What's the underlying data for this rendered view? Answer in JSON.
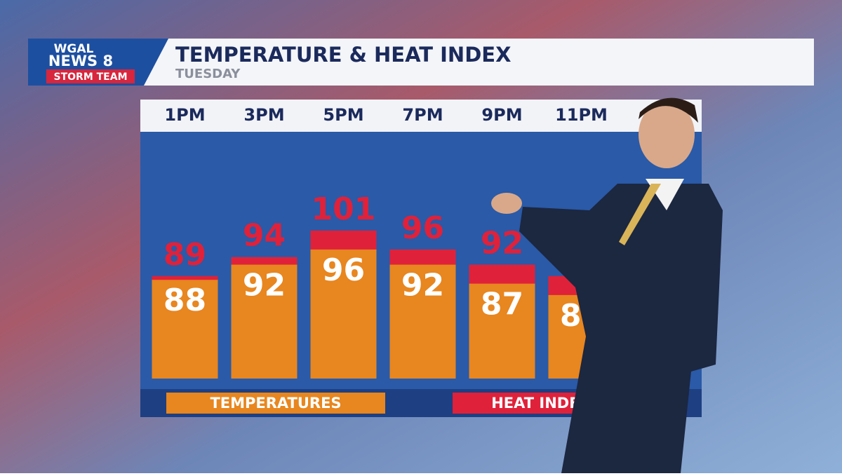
{
  "brand": {
    "station": "WGAL",
    "news": "NEWS 8",
    "team": "STORM TEAM"
  },
  "chart_data": {
    "type": "bar",
    "title": "TEMPERATURE & HEAT INDEX",
    "subtitle": "TUESDAY",
    "categories": [
      "1PM",
      "3PM",
      "5PM",
      "7PM",
      "9PM",
      "11PM"
    ],
    "series": [
      {
        "name": "HEAT INDEX",
        "color": "#e0213a",
        "values": [
          89,
          94,
          101,
          96,
          92,
          89
        ]
      },
      {
        "name": "TEMPERATURES",
        "color": "#e8861f",
        "values": [
          88,
          92,
          96,
          92,
          87,
          84
        ]
      }
    ],
    "ylim": [
      62,
      127
    ]
  }
}
